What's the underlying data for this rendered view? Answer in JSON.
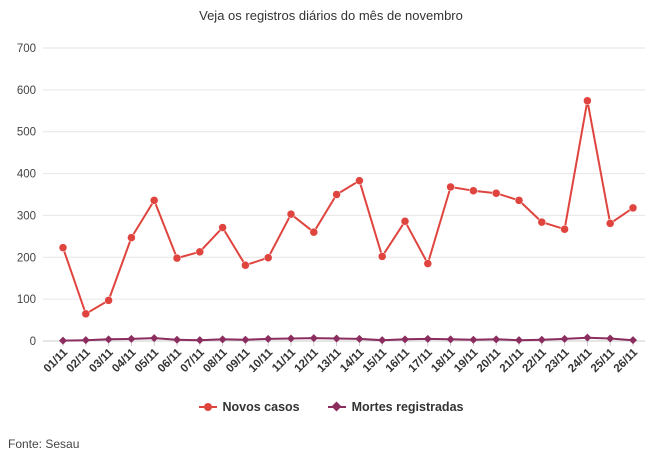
{
  "chart_data": {
    "type": "line",
    "title": "Veja os registros diários do mês de novembro",
    "categories": [
      "01/11",
      "02/11",
      "03/11",
      "04/11",
      "05/11",
      "06/11",
      "07/11",
      "08/11",
      "09/11",
      "10/11",
      "11/11",
      "12/11",
      "13/11",
      "14/11",
      "15/11",
      "16/11",
      "17/11",
      "18/11",
      "19/11",
      "20/11",
      "21/11",
      "22/11",
      "23/11",
      "24/11",
      "25/11",
      "26/11"
    ],
    "series": [
      {
        "name": "Novos casos",
        "color": "#e0443e",
        "marker": "circle",
        "values": [
          223,
          65,
          97,
          247,
          336,
          198,
          213,
          271,
          181,
          199,
          303,
          260,
          350,
          383,
          202,
          286,
          185,
          368,
          359,
          353,
          336,
          284,
          267,
          574,
          281,
          318
        ]
      },
      {
        "name": "Mortes registradas",
        "color": "#8b2d5f",
        "marker": "diamond",
        "values": [
          1,
          2,
          4,
          5,
          7,
          3,
          2,
          4,
          3,
          5,
          6,
          7,
          6,
          5,
          2,
          4,
          5,
          4,
          3,
          4,
          2,
          3,
          5,
          8,
          6,
          2
        ]
      }
    ],
    "ylim": [
      0,
      700
    ],
    "yticks": [
      0,
      100,
      200,
      300,
      400,
      500,
      600,
      700
    ],
    "grid": true,
    "legend": "bottom-center"
  },
  "source": "Fonte: Sesau"
}
